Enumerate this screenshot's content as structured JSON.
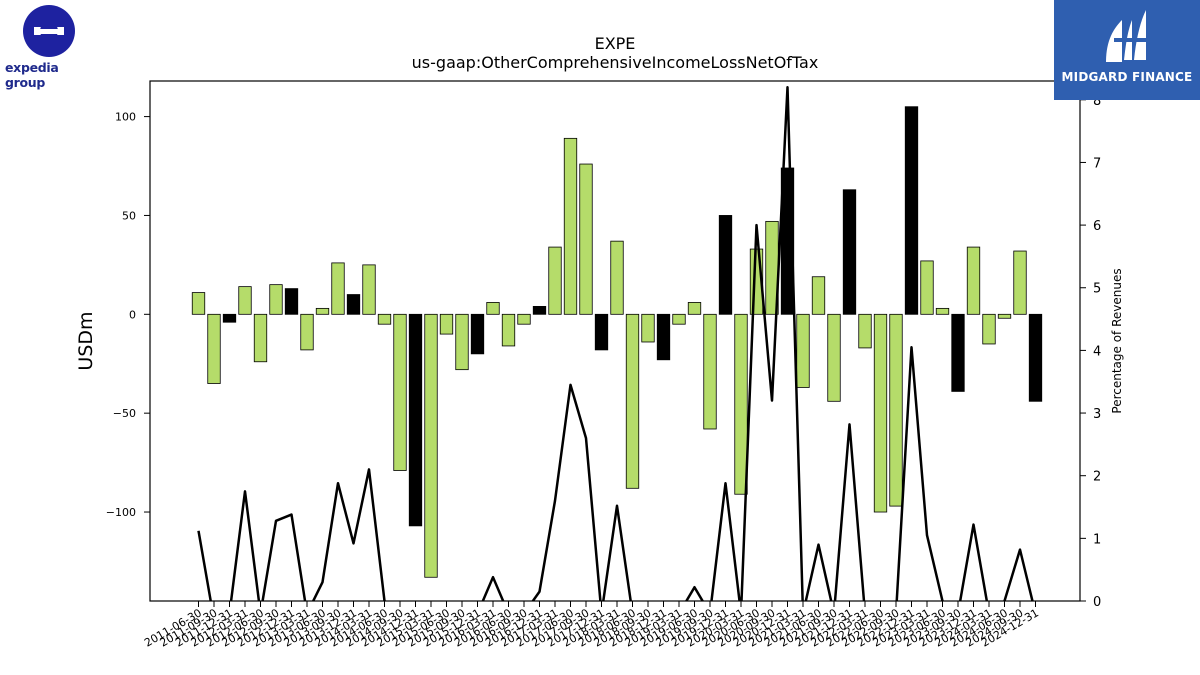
{
  "brand": {
    "left_logo_text": "expedia group",
    "right_logo_text": "MIDGARD FINANCE"
  },
  "colors": {
    "bar_positive": "#b5dc6a",
    "bar_highlight": "#000000",
    "line": "#000000",
    "right_logo_bg": "#2f5fb0",
    "left_logo": "#1e22a0"
  },
  "chart_data": {
    "type": "bar",
    "title": "EXPE",
    "subtitle": "us-gaap:OtherComprehensiveIncomeLossNetOfTax",
    "ylabel": "USDm",
    "y2label": "Percentage of Revenues",
    "ylim": [
      -145,
      118
    ],
    "y2lim": [
      0,
      8.3
    ],
    "yticks": [
      -100,
      -50,
      0,
      50,
      100
    ],
    "y2ticks": [
      0,
      1,
      2,
      3,
      4,
      5,
      6,
      7,
      8
    ],
    "categories": [
      "2011-06-30",
      "2011-09-30",
      "2011-12-31",
      "2012-03-31",
      "2012-06-30",
      "2012-09-30",
      "2012-12-31",
      "2013-03-31",
      "2013-06-30",
      "2013-09-30",
      "2013-12-31",
      "2014-03-31",
      "2014-06-30",
      "2014-09-30",
      "2014-12-31",
      "2015-03-31",
      "2015-06-30",
      "2015-09-30",
      "2015-12-31",
      "2016-03-31",
      "2016-06-30",
      "2016-09-30",
      "2016-12-31",
      "2017-03-31",
      "2017-06-30",
      "2017-09-30",
      "2017-12-31",
      "2018-03-31",
      "2018-06-30",
      "2018-09-30",
      "2018-12-31",
      "2019-03-31",
      "2019-06-30",
      "2019-09-30",
      "2019-12-31",
      "2020-03-31",
      "2020-06-30",
      "2020-09-30",
      "2020-12-31",
      "2021-03-31",
      "2021-06-30",
      "2021-09-30",
      "2021-12-31",
      "2022-03-31",
      "2022-06-30",
      "2022-09-30",
      "2022-12-31",
      "2023-03-31",
      "2023-06-30",
      "2023-09-30",
      "2023-12-31",
      "2024-03-31",
      "2024-06-30",
      "2024-09-30",
      "2024-12-31"
    ],
    "series": [
      {
        "values": [
          11,
          -35,
          -4,
          14,
          -24,
          15,
          13,
          -18,
          3,
          26,
          10,
          25,
          -5,
          -79,
          -107,
          -133,
          -10,
          -28,
          -20,
          6,
          -16,
          -5,
          4,
          34,
          89,
          76,
          -18,
          37,
          -88,
          -14,
          -23,
          -5,
          6,
          -58,
          50,
          -91,
          33,
          47,
          74,
          -37,
          19,
          -44,
          63,
          -17,
          -100,
          -97,
          105,
          27,
          3,
          -39,
          34,
          -15,
          -2,
          32,
          -44
        ],
        "highlight": [
          false,
          false,
          true,
          false,
          false,
          false,
          true,
          false,
          false,
          false,
          true,
          false,
          false,
          false,
          true,
          false,
          false,
          false,
          true,
          false,
          false,
          false,
          true,
          false,
          false,
          false,
          true,
          false,
          false,
          false,
          true,
          false,
          false,
          false,
          true,
          false,
          false,
          false,
          true,
          false,
          false,
          false,
          true,
          false,
          false,
          false,
          true,
          false,
          false,
          true,
          false,
          false,
          false,
          false,
          true
        ]
      },
      {
        "axis": "right",
        "type": "line",
        "values": [
          1.12,
          -0.3,
          -0.2,
          1.75,
          -0.2,
          1.28,
          1.38,
          -0.2,
          0.3,
          1.88,
          0.92,
          2.1,
          0,
          -0.2,
          -0.2,
          -0.2,
          -0.2,
          -0.2,
          -0.2,
          0.38,
          -0.2,
          -0.2,
          0.15,
          1.6,
          3.45,
          2.6,
          -0.2,
          1.52,
          -0.2,
          -0.2,
          -0.2,
          -0.2,
          0.22,
          -0.2,
          1.88,
          -0.2,
          6.0,
          3.2,
          8.2,
          -0.2,
          0.9,
          -0.2,
          2.82,
          -0.2,
          -0.2,
          -0.2,
          4.05,
          1.05,
          0,
          -0.2,
          1.22,
          -0.2,
          0,
          0.82,
          -0.2
        ]
      }
    ]
  }
}
